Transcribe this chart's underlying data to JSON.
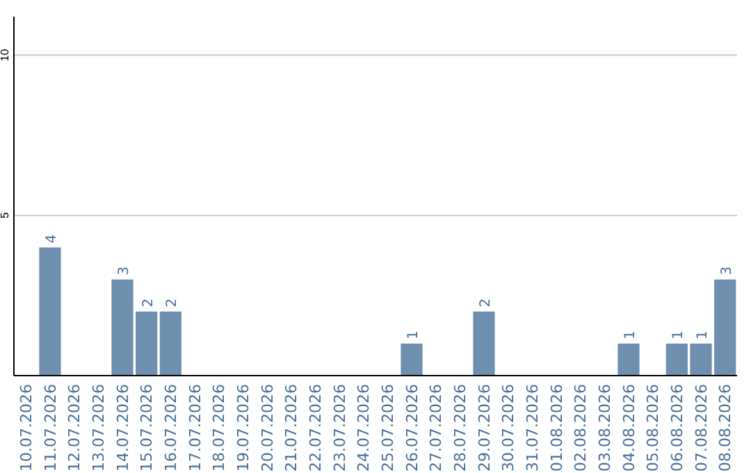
{
  "chart_data": {
    "type": "bar",
    "categories": [
      "10.07.2026",
      "11.07.2026",
      "12.07.2026",
      "13.07.2026",
      "14.07.2026",
      "15.07.2026",
      "16.07.2026",
      "17.07.2026",
      "18.07.2026",
      "19.07.2026",
      "20.07.2026",
      "21.07.2026",
      "22.07.2026",
      "23.07.2026",
      "24.07.2026",
      "25.07.2026",
      "26.07.2026",
      "27.07.2026",
      "28.07.2026",
      "29.07.2026",
      "30.07.2026",
      "31.07.2026",
      "01.08.2026",
      "02.08.2026",
      "03.08.2026",
      "04.08.2026",
      "05.08.2026",
      "06.08.2026",
      "07.08.2026",
      "08.08.2026"
    ],
    "values": [
      0,
      4,
      0,
      0,
      3,
      2,
      2,
      0,
      0,
      0,
      0,
      0,
      0,
      0,
      0,
      0,
      1,
      0,
      0,
      2,
      0,
      0,
      0,
      0,
      0,
      1,
      0,
      1,
      1,
      3
    ],
    "value_labels": [
      null,
      "4",
      null,
      null,
      "3",
      "2",
      "2",
      null,
      null,
      null,
      null,
      null,
      null,
      null,
      null,
      null,
      "1",
      null,
      null,
      "2",
      null,
      null,
      null,
      null,
      null,
      "1",
      null,
      "1",
      "1",
      "3"
    ],
    "color": "#6e8fae",
    "ylim": [
      0,
      11.2
    ],
    "yticks": [
      5,
      10
    ],
    "grid": "y"
  }
}
